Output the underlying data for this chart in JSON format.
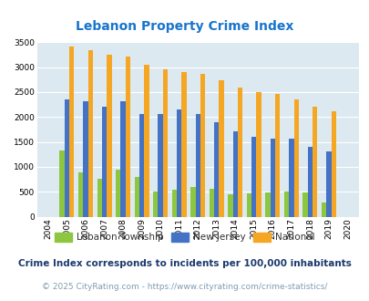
{
  "title": "Lebanon Property Crime Index",
  "years": [
    2004,
    2005,
    2006,
    2007,
    2008,
    2009,
    2010,
    2011,
    2012,
    2013,
    2014,
    2015,
    2016,
    2017,
    2018,
    2019,
    2020
  ],
  "lebanon": [
    0,
    1330,
    890,
    760,
    940,
    790,
    510,
    540,
    590,
    560,
    450,
    460,
    480,
    510,
    480,
    290,
    0
  ],
  "new_jersey": [
    0,
    2360,
    2310,
    2200,
    2320,
    2060,
    2060,
    2150,
    2050,
    1900,
    1720,
    1610,
    1560,
    1560,
    1400,
    1310,
    0
  ],
  "national": [
    0,
    3410,
    3330,
    3250,
    3210,
    3040,
    2950,
    2900,
    2860,
    2730,
    2590,
    2490,
    2460,
    2360,
    2200,
    2110,
    0
  ],
  "legend_labels": [
    "Lebanon Township",
    "New Jersey",
    "National"
  ],
  "bar_colors": [
    "#8dc63f",
    "#4472c4",
    "#f5a623"
  ],
  "ylim": [
    0,
    3500
  ],
  "yticks": [
    0,
    500,
    1000,
    1500,
    2000,
    2500,
    3000,
    3500
  ],
  "background_color": "#dce9f0",
  "grid_color": "#ffffff",
  "title_color": "#1874cd",
  "footnote1": "Crime Index corresponds to incidents per 100,000 inhabitants",
  "footnote2": "© 2025 CityRating.com - https://www.cityrating.com/crime-statistics/",
  "footnote1_color": "#1c3a6e",
  "footnote2_color": "#7f9db0"
}
